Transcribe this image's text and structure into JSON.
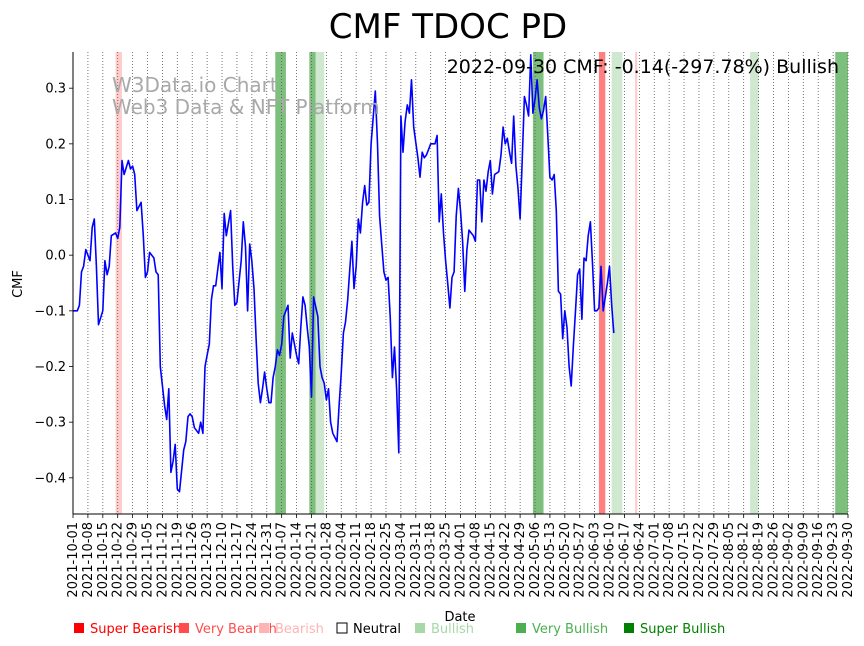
{
  "chart_data": {
    "type": "line",
    "title": "CMF TDOC PD",
    "annotation": "2022-09-30 CMF: -0.14(-297.78%) Bullish",
    "watermark": [
      "W3Data.io Chart",
      "Web3 Data & NFT Platform"
    ],
    "xlabel": "Date",
    "ylabel": "CMF",
    "ylim": [
      -0.465,
      0.365
    ],
    "yticks": [
      -0.4,
      -0.3,
      -0.2,
      -0.1,
      0.0,
      0.1,
      0.2,
      0.3
    ],
    "ytick_labels": [
      "−0.4",
      "−0.3",
      "−0.2",
      "−0.1",
      "0.0",
      "0.1",
      "0.2",
      "0.3"
    ],
    "x_start": "2021-10-01",
    "x_end": "2022-09-30",
    "xtick_labels": [
      "2021-10-01",
      "2021-10-08",
      "2021-10-15",
      "2021-10-22",
      "2021-10-29",
      "2021-11-05",
      "2021-11-12",
      "2021-11-19",
      "2021-11-26",
      "2021-12-03",
      "2021-12-10",
      "2021-12-17",
      "2021-12-24",
      "2021-12-31",
      "2022-01-07",
      "2022-01-14",
      "2022-01-21",
      "2022-01-28",
      "2022-02-04",
      "2022-02-11",
      "2022-02-18",
      "2022-02-25",
      "2022-03-04",
      "2022-03-11",
      "2022-03-18",
      "2022-03-25",
      "2022-04-01",
      "2022-04-08",
      "2022-04-15",
      "2022-04-22",
      "2022-04-29",
      "2022-05-06",
      "2022-05-13",
      "2022-05-20",
      "2022-05-27",
      "2022-06-03",
      "2022-06-10",
      "2022-06-17",
      "2022-06-24",
      "2022-07-01",
      "2022-07-08",
      "2022-07-15",
      "2022-07-22",
      "2022-07-29",
      "2022-08-05",
      "2022-08-12",
      "2022-08-19",
      "2022-08-26",
      "2022-09-02",
      "2022-09-09",
      "2022-09-16",
      "2022-09-23",
      "2022-09-30"
    ],
    "series": [
      {
        "name": "CMF",
        "color": "#0000ff",
        "points": [
          [
            "2021-10-01",
            -0.1
          ],
          [
            "2021-10-03",
            -0.1
          ],
          [
            "2021-10-04",
            -0.09
          ],
          [
            "2021-10-05",
            -0.03
          ],
          [
            "2021-10-06",
            -0.02
          ],
          [
            "2021-10-07",
            0.01
          ],
          [
            "2021-10-09",
            -0.01
          ],
          [
            "2021-10-10",
            0.05
          ],
          [
            "2021-10-11",
            0.065
          ],
          [
            "2021-10-12",
            -0.02
          ],
          [
            "2021-10-13",
            -0.125
          ],
          [
            "2021-10-15",
            -0.1
          ],
          [
            "2021-10-16",
            -0.01
          ],
          [
            "2021-10-17",
            -0.035
          ],
          [
            "2021-10-18",
            -0.02
          ],
          [
            "2021-10-19",
            0.035
          ],
          [
            "2021-10-21",
            0.04
          ],
          [
            "2021-10-22",
            0.03
          ],
          [
            "2021-10-23",
            0.05
          ],
          [
            "2021-10-24",
            0.17
          ],
          [
            "2021-10-25",
            0.145
          ],
          [
            "2021-10-27",
            0.17
          ],
          [
            "2021-10-28",
            0.155
          ],
          [
            "2021-10-29",
            0.16
          ],
          [
            "2021-10-30",
            0.145
          ],
          [
            "2021-10-31",
            0.08
          ],
          [
            "2021-11-02",
            0.095
          ],
          [
            "2021-11-03",
            0.035
          ],
          [
            "2021-11-04",
            -0.04
          ],
          [
            "2021-11-05",
            -0.03
          ],
          [
            "2021-11-06",
            0.005
          ],
          [
            "2021-11-08",
            -0.005
          ],
          [
            "2021-11-09",
            -0.03
          ],
          [
            "2021-11-10",
            -0.035
          ],
          [
            "2021-11-11",
            -0.2
          ],
          [
            "2021-11-13",
            -0.27
          ],
          [
            "2021-11-14",
            -0.295
          ],
          [
            "2021-11-15",
            -0.24
          ],
          [
            "2021-11-16",
            -0.39
          ],
          [
            "2021-11-17",
            -0.37
          ],
          [
            "2021-11-18",
            -0.34
          ],
          [
            "2021-11-19",
            -0.42
          ],
          [
            "2021-11-20",
            -0.425
          ],
          [
            "2021-11-22",
            -0.35
          ],
          [
            "2021-11-23",
            -0.335
          ],
          [
            "2021-11-24",
            -0.29
          ],
          [
            "2021-11-25",
            -0.285
          ],
          [
            "2021-11-26",
            -0.29
          ],
          [
            "2021-11-27",
            -0.31
          ],
          [
            "2021-11-29",
            -0.32
          ],
          [
            "2021-11-30",
            -0.3
          ],
          [
            "2021-12-01",
            -0.32
          ],
          [
            "2021-12-02",
            -0.2
          ],
          [
            "2021-12-03",
            -0.18
          ],
          [
            "2021-12-04",
            -0.16
          ],
          [
            "2021-12-05",
            -0.08
          ],
          [
            "2021-12-06",
            -0.055
          ],
          [
            "2021-12-07",
            -0.055
          ],
          [
            "2021-12-09",
            0.005
          ],
          [
            "2021-12-10",
            -0.06
          ],
          [
            "2021-12-11",
            0.075
          ],
          [
            "2021-12-12",
            0.035
          ],
          [
            "2021-12-14",
            0.08
          ],
          [
            "2021-12-15",
            -0.02
          ],
          [
            "2021-12-16",
            -0.09
          ],
          [
            "2021-12-17",
            -0.085
          ],
          [
            "2021-12-19",
            -0.01
          ],
          [
            "2021-12-20",
            0.06
          ],
          [
            "2021-12-21",
            0.015
          ],
          [
            "2021-12-22",
            -0.1
          ],
          [
            "2021-12-23",
            0.02
          ],
          [
            "2021-12-24",
            -0.01
          ],
          [
            "2021-12-25",
            -0.06
          ],
          [
            "2021-12-26",
            -0.15
          ],
          [
            "2021-12-27",
            -0.23
          ],
          [
            "2021-12-28",
            -0.265
          ],
          [
            "2021-12-29",
            -0.24
          ],
          [
            "2021-12-30",
            -0.21
          ],
          [
            "2021-12-31",
            -0.24
          ],
          [
            "2022-01-01",
            -0.265
          ],
          [
            "2022-01-02",
            -0.265
          ],
          [
            "2022-01-03",
            -0.22
          ],
          [
            "2022-01-04",
            -0.2
          ],
          [
            "2022-01-05",
            -0.17
          ],
          [
            "2022-01-06",
            -0.18
          ],
          [
            "2022-01-07",
            -0.16
          ],
          [
            "2022-01-08",
            -0.11
          ],
          [
            "2022-01-10",
            -0.09
          ],
          [
            "2022-01-11",
            -0.185
          ],
          [
            "2022-01-12",
            -0.14
          ],
          [
            "2022-01-14",
            -0.18
          ],
          [
            "2022-01-15",
            -0.195
          ],
          [
            "2022-01-16",
            -0.13
          ],
          [
            "2022-01-17",
            -0.075
          ],
          [
            "2022-01-18",
            -0.09
          ],
          [
            "2022-01-19",
            -0.13
          ],
          [
            "2022-01-20",
            -0.165
          ],
          [
            "2022-01-21",
            -0.255
          ],
          [
            "2022-01-22",
            -0.075
          ],
          [
            "2022-01-24",
            -0.11
          ],
          [
            "2022-01-25",
            -0.2
          ],
          [
            "2022-01-26",
            -0.22
          ],
          [
            "2022-01-27",
            -0.23
          ],
          [
            "2022-01-28",
            -0.26
          ],
          [
            "2022-01-29",
            -0.24
          ],
          [
            "2022-01-30",
            -0.3
          ],
          [
            "2022-01-31",
            -0.32
          ],
          [
            "2022-02-02",
            -0.335
          ],
          [
            "2022-02-03",
            -0.27
          ],
          [
            "2022-02-04",
            -0.21
          ],
          [
            "2022-02-05",
            -0.14
          ],
          [
            "2022-02-06",
            -0.12
          ],
          [
            "2022-02-07",
            -0.08
          ],
          [
            "2022-02-08",
            -0.025
          ],
          [
            "2022-02-09",
            0.025
          ],
          [
            "2022-02-10",
            -0.06
          ],
          [
            "2022-02-11",
            -0.02
          ],
          [
            "2022-02-12",
            0.065
          ],
          [
            "2022-02-13",
            0.04
          ],
          [
            "2022-02-14",
            0.095
          ],
          [
            "2022-02-15",
            0.125
          ],
          [
            "2022-02-16",
            0.09
          ],
          [
            "2022-02-17",
            0.095
          ],
          [
            "2022-02-18",
            0.2
          ],
          [
            "2022-02-20",
            0.295
          ],
          [
            "2022-02-21",
            0.2
          ],
          [
            "2022-02-22",
            0.07
          ],
          [
            "2022-02-23",
            0.02
          ],
          [
            "2022-02-24",
            -0.03
          ],
          [
            "2022-02-25",
            -0.045
          ],
          [
            "2022-02-26",
            -0.04
          ],
          [
            "2022-02-27",
            -0.11
          ],
          [
            "2022-02-28",
            -0.22
          ],
          [
            "2022-03-01",
            -0.165
          ],
          [
            "2022-03-02",
            -0.24
          ],
          [
            "2022-03-03",
            -0.355
          ],
          [
            "2022-03-04",
            0.25
          ],
          [
            "2022-03-05",
            0.185
          ],
          [
            "2022-03-06",
            0.24
          ],
          [
            "2022-03-07",
            0.27
          ],
          [
            "2022-03-08",
            0.255
          ],
          [
            "2022-03-09",
            0.315
          ],
          [
            "2022-03-10",
            0.23
          ],
          [
            "2022-03-12",
            0.175
          ],
          [
            "2022-03-13",
            0.14
          ],
          [
            "2022-03-14",
            0.185
          ],
          [
            "2022-03-15",
            0.175
          ],
          [
            "2022-03-16",
            0.18
          ],
          [
            "2022-03-17",
            0.19
          ],
          [
            "2022-03-18",
            0.2
          ],
          [
            "2022-03-20",
            0.2
          ],
          [
            "2022-03-21",
            0.215
          ],
          [
            "2022-03-22",
            0.06
          ],
          [
            "2022-03-23",
            0.11
          ],
          [
            "2022-03-24",
            0.04
          ],
          [
            "2022-03-25",
            -0.01
          ],
          [
            "2022-03-26",
            -0.05
          ],
          [
            "2022-03-27",
            -0.095
          ],
          [
            "2022-03-28",
            -0.04
          ],
          [
            "2022-03-29",
            -0.03
          ],
          [
            "2022-03-30",
            0.07
          ],
          [
            "2022-03-31",
            0.12
          ],
          [
            "2022-04-01",
            0.08
          ],
          [
            "2022-04-02",
            0.025
          ],
          [
            "2022-04-03",
            -0.065
          ],
          [
            "2022-04-04",
            0.01
          ],
          [
            "2022-04-05",
            0.045
          ],
          [
            "2022-04-07",
            0.035
          ],
          [
            "2022-04-08",
            0.025
          ],
          [
            "2022-04-09",
            0.135
          ],
          [
            "2022-04-10",
            0.135
          ],
          [
            "2022-04-11",
            0.06
          ],
          [
            "2022-04-12",
            0.135
          ],
          [
            "2022-04-13",
            0.115
          ],
          [
            "2022-04-14",
            0.15
          ],
          [
            "2022-04-15",
            0.17
          ],
          [
            "2022-04-16",
            0.11
          ],
          [
            "2022-04-17",
            0.145
          ],
          [
            "2022-04-19",
            0.15
          ],
          [
            "2022-04-20",
            0.18
          ],
          [
            "2022-04-21",
            0.23
          ],
          [
            "2022-04-22",
            0.2
          ],
          [
            "2022-04-23",
            0.21
          ],
          [
            "2022-04-24",
            0.185
          ],
          [
            "2022-04-25",
            0.165
          ],
          [
            "2022-04-26",
            0.25
          ],
          [
            "2022-04-27",
            0.16
          ],
          [
            "2022-04-28",
            0.12
          ],
          [
            "2022-04-29",
            0.065
          ],
          [
            "2022-04-30",
            0.17
          ],
          [
            "2022-05-01",
            0.285
          ],
          [
            "2022-05-02",
            0.27
          ],
          [
            "2022-05-03",
            0.25
          ],
          [
            "2022-05-04",
            0.36
          ],
          [
            "2022-05-05",
            0.255
          ],
          [
            "2022-05-06",
            0.28
          ],
          [
            "2022-05-07",
            0.315
          ],
          [
            "2022-05-08",
            0.265
          ],
          [
            "2022-05-09",
            0.245
          ],
          [
            "2022-05-10",
            0.26
          ],
          [
            "2022-05-11",
            0.285
          ],
          [
            "2022-05-12",
            0.215
          ],
          [
            "2022-05-13",
            0.14
          ],
          [
            "2022-05-14",
            0.135
          ],
          [
            "2022-05-15",
            0.145
          ],
          [
            "2022-05-16",
            0.08
          ],
          [
            "2022-05-17",
            -0.065
          ],
          [
            "2022-05-18",
            -0.07
          ],
          [
            "2022-05-19",
            -0.15
          ],
          [
            "2022-05-20",
            -0.1
          ],
          [
            "2022-05-21",
            -0.13
          ],
          [
            "2022-05-22",
            -0.2
          ],
          [
            "2022-05-23",
            -0.235
          ],
          [
            "2022-05-24",
            -0.165
          ],
          [
            "2022-05-25",
            -0.1
          ],
          [
            "2022-05-26",
            -0.035
          ],
          [
            "2022-05-27",
            -0.025
          ],
          [
            "2022-05-28",
            -0.115
          ],
          [
            "2022-05-29",
            -0.005
          ],
          [
            "2022-05-30",
            -0.01
          ],
          [
            "2022-05-31",
            0.035
          ],
          [
            "2022-06-01",
            0.06
          ],
          [
            "2022-06-02",
            -0.015
          ],
          [
            "2022-06-03",
            -0.1
          ],
          [
            "2022-06-04",
            -0.1
          ],
          [
            "2022-06-05",
            -0.095
          ],
          [
            "2022-06-06",
            -0.02
          ],
          [
            "2022-06-07",
            -0.1
          ],
          [
            "2022-06-09",
            -0.05
          ],
          [
            "2022-06-10",
            -0.02
          ],
          [
            "2022-06-11",
            -0.09
          ],
          [
            "2022-06-12",
            -0.14
          ]
        ]
      }
    ],
    "shaded_regions": [
      {
        "start": "2021-10-21",
        "end": "2021-10-24",
        "signal": "bearish"
      },
      {
        "start": "2022-01-04",
        "end": "2022-01-09",
        "signal": "very_bullish"
      },
      {
        "start": "2022-01-20",
        "end": "2022-01-23",
        "signal": "very_bullish"
      },
      {
        "start": "2022-01-23",
        "end": "2022-01-27",
        "signal": "bullish"
      },
      {
        "start": "2022-05-05",
        "end": "2022-05-10",
        "signal": "very_bullish"
      },
      {
        "start": "2022-06-05",
        "end": "2022-06-08",
        "signal": "very_bearish"
      },
      {
        "start": "2022-06-11",
        "end": "2022-06-16",
        "signal": "bullish"
      },
      {
        "start": "2022-06-22",
        "end": "2022-06-23",
        "signal": "bearish"
      },
      {
        "start": "2022-08-15",
        "end": "2022-08-19",
        "signal": "bullish"
      },
      {
        "start": "2022-09-24",
        "end": "2022-09-30",
        "signal": "very_bullish"
      }
    ],
    "legend": [
      {
        "label": "Super Bearish",
        "color": "#ff0000"
      },
      {
        "label": "Very Bearish",
        "color": "#ff4d4d"
      },
      {
        "label": "Bearish",
        "color": "#ffb3b3"
      },
      {
        "label": "Neutral",
        "color": "#000000"
      },
      {
        "label": "Bullish",
        "color": "#a8d8a8"
      },
      {
        "label": "Very Bullish",
        "color": "#4caf50"
      },
      {
        "label": "Super Bullish",
        "color": "#008000"
      }
    ],
    "region_colors": {
      "bearish": "#ffcccc",
      "very_bearish": "#ff8080",
      "bullish": "#cfe8cf",
      "very_bullish": "#7dbf7d"
    }
  }
}
